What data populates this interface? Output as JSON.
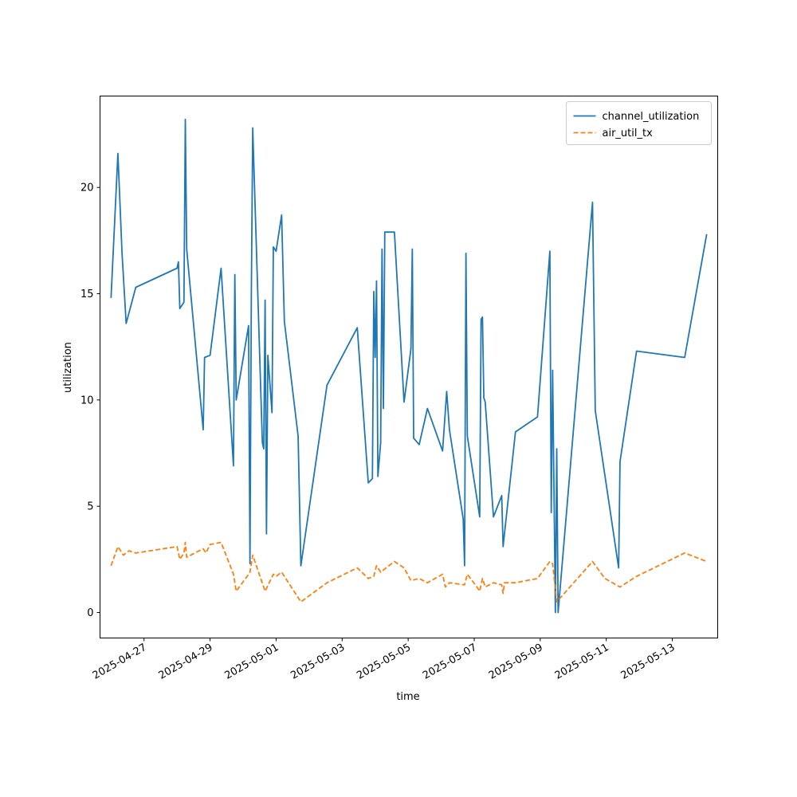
{
  "chart_data": {
    "type": "line",
    "title": "",
    "xlabel": "time",
    "ylabel": "utilization",
    "xlim": [
      "2025-04-25T16:00",
      "2025-05-14T09:00"
    ],
    "ylim": [
      -1.2,
      24.3
    ],
    "xticks": [
      "2025-04-27",
      "2025-04-29",
      "2025-05-01",
      "2025-05-03",
      "2025-05-05",
      "2025-05-07",
      "2025-05-09",
      "2025-05-11",
      "2025-05-13"
    ],
    "yticks": [
      0,
      5,
      10,
      15,
      20
    ],
    "legend_position": "top-right",
    "grid": false,
    "series": [
      {
        "name": "channel_utilization",
        "color": "#1f77b4",
        "dash": "solid",
        "points": [
          [
            "2025-04-26T00:00",
            14.8
          ],
          [
            "2025-04-26T05:00",
            21.6
          ],
          [
            "2025-04-26T08:00",
            16.9
          ],
          [
            "2025-04-26T11:00",
            13.6
          ],
          [
            "2025-04-26T18:00",
            15.3
          ],
          [
            "2025-04-28T00:00",
            16.2
          ],
          [
            "2025-04-28T01:00",
            16.5
          ],
          [
            "2025-04-28T02:00",
            14.3
          ],
          [
            "2025-04-28T05:00",
            14.6
          ],
          [
            "2025-04-28T06:00",
            23.2
          ],
          [
            "2025-04-28T07:00",
            17.1
          ],
          [
            "2025-04-28T19:00",
            8.6
          ],
          [
            "2025-04-28T20:00",
            12.0
          ],
          [
            "2025-04-29T00:00",
            12.1
          ],
          [
            "2025-04-29T08:00",
            16.2
          ],
          [
            "2025-04-29T17:00",
            6.9
          ],
          [
            "2025-04-29T18:00",
            15.9
          ],
          [
            "2025-04-29T19:00",
            10.0
          ],
          [
            "2025-04-30T04:00",
            13.5
          ],
          [
            "2025-04-30T05:00",
            2.3
          ],
          [
            "2025-04-30T06:00",
            15.0
          ],
          [
            "2025-04-30T07:00",
            22.8
          ],
          [
            "2025-04-30T14:00",
            8.0
          ],
          [
            "2025-04-30T15:00",
            7.7
          ],
          [
            "2025-04-30T16:00",
            14.7
          ],
          [
            "2025-04-30T17:00",
            3.7
          ],
          [
            "2025-04-30T18:00",
            12.1
          ],
          [
            "2025-04-30T21:00",
            9.4
          ],
          [
            "2025-04-30T22:00",
            17.2
          ],
          [
            "2025-05-01T00:00",
            17.0
          ],
          [
            "2025-05-01T04:00",
            18.7
          ],
          [
            "2025-05-01T06:00",
            13.7
          ],
          [
            "2025-05-01T16:00",
            8.3
          ],
          [
            "2025-05-01T18:00",
            2.2
          ],
          [
            "2025-05-02T13:00",
            10.7
          ],
          [
            "2025-05-03T11:00",
            13.4
          ],
          [
            "2025-05-03T19:00",
            6.1
          ],
          [
            "2025-05-03T22:00",
            6.3
          ],
          [
            "2025-05-03T23:00",
            15.1
          ],
          [
            "2025-05-04T00:00",
            12.0
          ],
          [
            "2025-05-04T01:00",
            15.6
          ],
          [
            "2025-05-04T02:00",
            6.4
          ],
          [
            "2025-05-04T04:00",
            8.0
          ],
          [
            "2025-05-04T05:00",
            17.1
          ],
          [
            "2025-05-04T06:00",
            9.6
          ],
          [
            "2025-05-04T07:00",
            17.9
          ],
          [
            "2025-05-04T14:00",
            17.9
          ],
          [
            "2025-05-04T21:00",
            9.9
          ],
          [
            "2025-05-05T02:00",
            12.4
          ],
          [
            "2025-05-05T03:00",
            17.1
          ],
          [
            "2025-05-05T04:00",
            8.2
          ],
          [
            "2025-05-05T08:00",
            7.9
          ],
          [
            "2025-05-05T14:00",
            9.6
          ],
          [
            "2025-05-06T01:00",
            7.6
          ],
          [
            "2025-05-06T04:00",
            10.4
          ],
          [
            "2025-05-06T06:00",
            8.6
          ],
          [
            "2025-05-06T16:00",
            4.4
          ],
          [
            "2025-05-06T17:00",
            2.2
          ],
          [
            "2025-05-06T18:00",
            16.9
          ],
          [
            "2025-05-06T19:00",
            8.3
          ],
          [
            "2025-05-07T04:00",
            4.5
          ],
          [
            "2025-05-07T05:00",
            13.8
          ],
          [
            "2025-05-07T06:00",
            13.9
          ],
          [
            "2025-05-07T07:00",
            10.1
          ],
          [
            "2025-05-07T08:00",
            9.9
          ],
          [
            "2025-05-07T14:00",
            4.5
          ],
          [
            "2025-05-07T20:00",
            5.5
          ],
          [
            "2025-05-07T21:00",
            3.1
          ],
          [
            "2025-05-08T06:00",
            8.5
          ],
          [
            "2025-05-08T22:00",
            9.2
          ],
          [
            "2025-05-09T07:00",
            17.0
          ],
          [
            "2025-05-09T08:00",
            4.7
          ],
          [
            "2025-05-09T09:00",
            11.4
          ],
          [
            "2025-05-09T11:00",
            0.0
          ],
          [
            "2025-05-09T12:00",
            7.7
          ],
          [
            "2025-05-09T13:00",
            0.0
          ],
          [
            "2025-05-10T14:00",
            19.3
          ],
          [
            "2025-05-10T16:00",
            9.5
          ],
          [
            "2025-05-11T09:00",
            2.1
          ],
          [
            "2025-05-11T10:00",
            7.1
          ],
          [
            "2025-05-11T22:00",
            12.3
          ],
          [
            "2025-05-13T09:00",
            12.0
          ],
          [
            "2025-05-14T01:00",
            17.8
          ]
        ]
      },
      {
        "name": "air_util_tx",
        "color": "#ff7f0e",
        "dash": "dashed",
        "points": [
          [
            "2025-04-26T00:00",
            2.2
          ],
          [
            "2025-04-26T05:00",
            3.1
          ],
          [
            "2025-04-26T09:00",
            2.7
          ],
          [
            "2025-04-26T13:00",
            2.9
          ],
          [
            "2025-04-26T18:00",
            2.8
          ],
          [
            "2025-04-28T00:00",
            3.1
          ],
          [
            "2025-04-28T02:00",
            2.5
          ],
          [
            "2025-04-28T05:00",
            2.8
          ],
          [
            "2025-04-28T06:00",
            3.3
          ],
          [
            "2025-04-28T07:00",
            2.6
          ],
          [
            "2025-04-28T19:00",
            3.0
          ],
          [
            "2025-04-28T21:00",
            2.8
          ],
          [
            "2025-04-29T00:00",
            3.2
          ],
          [
            "2025-04-29T08:00",
            3.3
          ],
          [
            "2025-04-29T17:00",
            1.8
          ],
          [
            "2025-04-29T19:00",
            1.0
          ],
          [
            "2025-04-30T04:00",
            1.8
          ],
          [
            "2025-04-30T05:00",
            1.9
          ],
          [
            "2025-04-30T07:00",
            2.7
          ],
          [
            "2025-04-30T16:00",
            1.0
          ],
          [
            "2025-04-30T22:00",
            1.8
          ],
          [
            "2025-05-01T00:00",
            1.7
          ],
          [
            "2025-05-01T04:00",
            1.9
          ],
          [
            "2025-05-01T18:00",
            0.5
          ],
          [
            "2025-05-02T13:00",
            1.4
          ],
          [
            "2025-05-03T11:00",
            2.1
          ],
          [
            "2025-05-03T19:00",
            1.6
          ],
          [
            "2025-05-03T23:00",
            1.7
          ],
          [
            "2025-05-04T01:00",
            2.2
          ],
          [
            "2025-05-04T04:00",
            1.9
          ],
          [
            "2025-05-04T14:00",
            2.4
          ],
          [
            "2025-05-04T21:00",
            2.1
          ],
          [
            "2025-05-05T02:00",
            1.5
          ],
          [
            "2025-05-05T08:00",
            1.6
          ],
          [
            "2025-05-05T14:00",
            1.4
          ],
          [
            "2025-05-06T01:00",
            1.8
          ],
          [
            "2025-05-06T03:00",
            1.2
          ],
          [
            "2025-05-06T06:00",
            1.4
          ],
          [
            "2025-05-06T17:00",
            1.3
          ],
          [
            "2025-05-06T19:00",
            1.8
          ],
          [
            "2025-05-07T02:00",
            1.2
          ],
          [
            "2025-05-07T04:00",
            1.0
          ],
          [
            "2025-05-07T06:00",
            1.6
          ],
          [
            "2025-05-07T08:00",
            1.2
          ],
          [
            "2025-05-07T14:00",
            1.4
          ],
          [
            "2025-05-07T20:00",
            1.3
          ],
          [
            "2025-05-07T21:00",
            0.9
          ],
          [
            "2025-05-07T22:00",
            1.4
          ],
          [
            "2025-05-08T06:00",
            1.4
          ],
          [
            "2025-05-08T22:00",
            1.6
          ],
          [
            "2025-05-09T07:00",
            2.4
          ],
          [
            "2025-05-09T09:00",
            2.3
          ],
          [
            "2025-05-09T12:00",
            0.5
          ],
          [
            "2025-05-10T14:00",
            2.4
          ],
          [
            "2025-05-10T23:00",
            1.6
          ],
          [
            "2025-05-11T10:00",
            1.2
          ],
          [
            "2025-05-11T22:00",
            1.7
          ],
          [
            "2025-05-13T09:00",
            2.8
          ],
          [
            "2025-05-14T01:00",
            2.4
          ]
        ]
      }
    ]
  }
}
